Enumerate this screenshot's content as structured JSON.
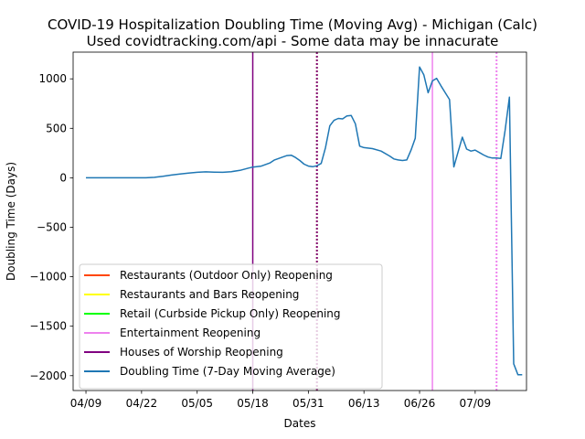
{
  "chart_data": {
    "type": "line",
    "title": "COVID-19 Hospitalization Doubling Time (Moving Avg) - Michigan (Calc)",
    "subtitle": "Used covidtracking.com/api - Some data may be innacurate",
    "xlabel": "Dates",
    "ylabel": "Doubling Time (Days)",
    "x_tick_labels": [
      "04/09",
      "04/22",
      "05/05",
      "05/18",
      "05/31",
      "06/13",
      "06/26",
      "07/09"
    ],
    "x_tick_days": [
      0,
      13,
      26,
      39,
      52,
      65,
      78,
      91
    ],
    "y_ticks": [
      -2000,
      -1500,
      -1000,
      -500,
      0,
      500,
      1000
    ],
    "xlim": [
      -3,
      103
    ],
    "ylim": [
      -2150,
      1270
    ],
    "legend_position": "lower-left",
    "vlines": [
      {
        "name": "Restaurants (Outdoor Only) Reopening",
        "color": "#ff4500",
        "day": 39,
        "style": "solid",
        "drawn": false
      },
      {
        "name": "Restaurants and Bars Reopening",
        "color": "#ffff00",
        "day": 54,
        "style": "dotted",
        "drawn": true
      },
      {
        "name": "Retail (Curbside Pickup Only) Reopening",
        "color": "#00ff00",
        "day": 39,
        "style": "solid",
        "drawn": false
      },
      {
        "name": "Entertainment Reopening",
        "color": "#ee82ee",
        "day": 81,
        "style": "solid",
        "drawn": true
      },
      {
        "name": "Entertainment Reopening",
        "color": "#ee82ee",
        "day": 96,
        "style": "dotted",
        "drawn": true,
        "legend": false
      },
      {
        "name": "Houses of Worship Reopening",
        "color": "#800080",
        "day": 39,
        "style": "solid",
        "drawn": true
      },
      {
        "name": "Houses of Worship Reopening",
        "color": "#800080",
        "day": 54,
        "style": "dotted",
        "drawn": true,
        "legend": false
      }
    ],
    "series": [
      {
        "name": "Doubling Time (7-Day Moving Average)",
        "color": "#1f77b4",
        "x": [
          0,
          2,
          4,
          6,
          8,
          10,
          12,
          14,
          16,
          18,
          20,
          22,
          24,
          26,
          28,
          30,
          32,
          34,
          36,
          38,
          39,
          41,
          43,
          44,
          46,
          47,
          48,
          49,
          50,
          51,
          52,
          53,
          54,
          55,
          56,
          57,
          58,
          59,
          60,
          61,
          62,
          63,
          64,
          65,
          67,
          69,
          71,
          72,
          73,
          74,
          75,
          76,
          77,
          78,
          79,
          80,
          81,
          82,
          83,
          84,
          85,
          86,
          87,
          88,
          89,
          90,
          91,
          92,
          93,
          94,
          95,
          96,
          97,
          98,
          99,
          100,
          101,
          102
        ],
        "y": [
          0,
          0,
          0,
          0,
          0,
          0,
          0,
          0,
          5,
          15,
          28,
          38,
          48,
          55,
          60,
          57,
          55,
          62,
          75,
          98,
          108,
          118,
          150,
          178,
          210,
          225,
          228,
          205,
          175,
          138,
          118,
          112,
          122,
          145,
          305,
          525,
          580,
          600,
          595,
          625,
          630,
          545,
          320,
          305,
          295,
          270,
          220,
          190,
          180,
          175,
          180,
          280,
          400,
          1120,
          1040,
          860,
          980,
          1005,
          930,
          860,
          790,
          110,
          260,
          410,
          290,
          270,
          280,
          255,
          230,
          210,
          200,
          200,
          195,
          480,
          815,
          -1880,
          -1990,
          -1990
        ]
      }
    ]
  }
}
